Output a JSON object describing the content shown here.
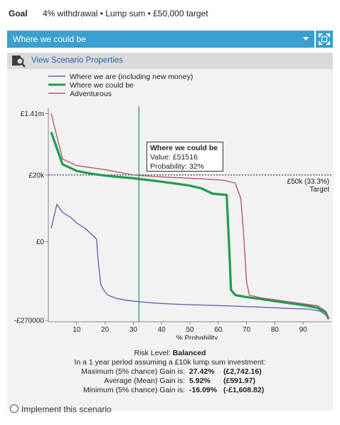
{
  "goal": {
    "label": "Goal",
    "text": "4% withdrawal • Lump sum • £50,000 target"
  },
  "scenario_select": {
    "selected": "Where we could be",
    "expand_icon": "expand-arrows-icon"
  },
  "properties_link": {
    "label": "View Scenario Properties",
    "icon": "magnifier-icon"
  },
  "legend": [
    {
      "label": "Where we are (including new money)",
      "color": "#6666b4"
    },
    {
      "label": "Where we could be",
      "color": "#1e9e4e"
    },
    {
      "label": "Adventurous",
      "color": "#b25a70"
    }
  ],
  "chart_data": {
    "type": "line",
    "xlabel": "% Probability",
    "x_ticks": [
      "10",
      "20",
      "30",
      "40",
      "50",
      "60",
      "70",
      "80",
      "90"
    ],
    "y_ticks": [
      "£1.41m",
      "£20k",
      "£0",
      "-£270000"
    ],
    "target_label": "£50k (33.3%)",
    "target_sub": "Target",
    "cursor_x": 32,
    "series": [
      {
        "name": "Where we are (including new money)",
        "color": "#6666b4",
        "points": [
          [
            1,
            0.6
          ],
          [
            3,
            0.78
          ],
          [
            5,
            0.72
          ],
          [
            8,
            0.68
          ],
          [
            10,
            0.64
          ],
          [
            13,
            0.6
          ],
          [
            15,
            0.56
          ],
          [
            17,
            0.52
          ],
          [
            17.6,
            0.36
          ],
          [
            18.5,
            0.18
          ],
          [
            19.5,
            0.14
          ],
          [
            21,
            0.1
          ],
          [
            24,
            0.075
          ],
          [
            28,
            0.06
          ],
          [
            32,
            0.05
          ],
          [
            38,
            0.04
          ],
          [
            45,
            0.032
          ],
          [
            55,
            0.025
          ],
          [
            65,
            0.018
          ],
          [
            75,
            0.01
          ],
          [
            85,
            0.0
          ],
          [
            92,
            -0.005
          ],
          [
            96,
            -0.02
          ],
          [
            98,
            -0.05
          ],
          [
            99,
            -0.08
          ]
        ]
      },
      {
        "name": "Where we could be",
        "color": "#1e9e4e",
        "points": [
          [
            1,
            1.32
          ],
          [
            5,
            1.08
          ],
          [
            10,
            1.03
          ],
          [
            15,
            1.01
          ],
          [
            20,
            0.995
          ],
          [
            25,
            0.985
          ],
          [
            30,
            0.975
          ],
          [
            32,
            0.97
          ],
          [
            38,
            0.955
          ],
          [
            45,
            0.935
          ],
          [
            50,
            0.92
          ],
          [
            54,
            0.9
          ],
          [
            58,
            0.86
          ],
          [
            63,
            0.85
          ],
          [
            64,
            0.4
          ],
          [
            64.5,
            0.14
          ],
          [
            66,
            0.1
          ],
          [
            70,
            0.085
          ],
          [
            75,
            0.07
          ],
          [
            80,
            0.055
          ],
          [
            85,
            0.04
          ],
          [
            90,
            0.025
          ],
          [
            95,
            0.005
          ],
          [
            98,
            -0.03
          ],
          [
            99,
            -0.08
          ]
        ]
      },
      {
        "name": "Adventurous",
        "color": "#b25a70",
        "points": [
          [
            1,
            1.46
          ],
          [
            5,
            1.12
          ],
          [
            10,
            1.07
          ],
          [
            20,
            1.04
          ],
          [
            30,
            1.0
          ],
          [
            40,
            0.985
          ],
          [
            50,
            0.975
          ],
          [
            55,
            0.97
          ],
          [
            62,
            0.96
          ],
          [
            66,
            0.94
          ],
          [
            68,
            0.82
          ],
          [
            69,
            0.55
          ],
          [
            70,
            0.2
          ],
          [
            71,
            0.1
          ],
          [
            75,
            0.08
          ],
          [
            80,
            0.065
          ],
          [
            85,
            0.05
          ],
          [
            90,
            0.035
          ],
          [
            95,
            0.02
          ],
          [
            98,
            -0.02
          ],
          [
            99,
            -0.08
          ]
        ]
      }
    ]
  },
  "tooltip": {
    "title": "Where we could be",
    "value": "Value: £51516",
    "probability": "Probability: 32%"
  },
  "risk": {
    "level_label": "Risk Level:",
    "level_value": "Balanced",
    "period_text": "In a 1 year period assuming a £10k lump sum investment:",
    "rows": [
      {
        "label": "Maximum (5% chance) Gain is:",
        "pct": "27.42%",
        "amount": "(£2,742.16)"
      },
      {
        "label": "Average (Mean) Gain is:",
        "pct": "5.92%",
        "amount": "(£591.97)"
      },
      {
        "label": "Minimum (5% chance) Gain is:",
        "pct": "-16.09%",
        "amount": "(-£1,608.82)"
      }
    ]
  },
  "implement": {
    "label": "Implement this scenario"
  }
}
